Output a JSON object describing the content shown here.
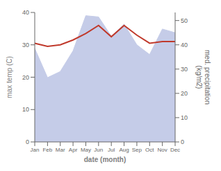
{
  "chart_data": {
    "type": "line",
    "xlabel": "date (month)",
    "ylabel": "max temp (C)",
    "y2label": "med. precipitation\n(kg/m2)",
    "categories": [
      "Jan",
      "Feb",
      "Mar",
      "Apr",
      "May",
      "Jun",
      "Jul",
      "Aug",
      "Sep",
      "Oct",
      "Nov",
      "Dec"
    ],
    "series": [
      {
        "type": "area",
        "axis": "y2",
        "color": "#c5cce8",
        "values": [
          38.5,
          26.5,
          29.0,
          37.5,
          52.0,
          51.5,
          43.5,
          48.5,
          40.0,
          36.0,
          46.5,
          45.0
        ]
      },
      {
        "type": "line",
        "color": "#c0392b",
        "values": [
          30.5,
          29.5,
          30.0,
          31.5,
          33.5,
          36.0,
          32.5,
          36.0,
          33.0,
          30.5,
          31.0,
          31.0
        ]
      }
    ],
    "ylim": [
      0,
      40
    ],
    "yticks": [
      0,
      10,
      20,
      30,
      40
    ],
    "y2lim": [
      0,
      53.33
    ],
    "y2ticks": [
      0,
      10,
      20,
      30,
      40,
      50
    ]
  }
}
